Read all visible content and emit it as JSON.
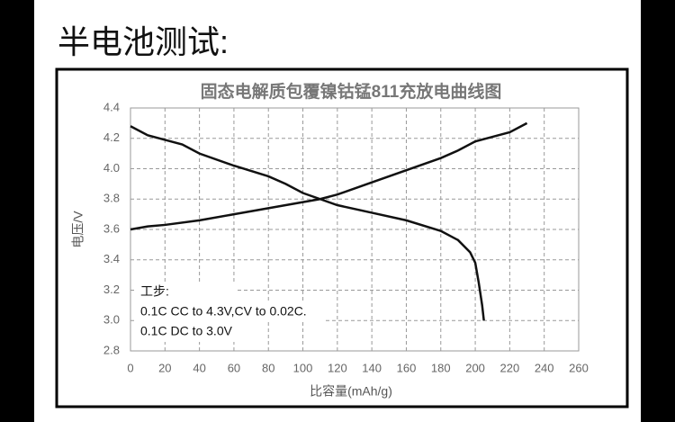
{
  "heading": "半电池测试:",
  "chart_data": {
    "type": "line",
    "title": "固态电解质包覆镍钴锰811充放电曲线图",
    "xlabel": "比容量(mAh/g)",
    "ylabel": "电压/V",
    "xlim": [
      0,
      260
    ],
    "xticks": [
      0,
      20,
      40,
      60,
      80,
      100,
      120,
      140,
      160,
      180,
      200,
      220,
      240,
      260
    ],
    "ylim": [
      2.8,
      4.4
    ],
    "yticks": [
      2.8,
      {
        "value": 3,
        "label": "3.0"
      },
      3.2,
      3.4,
      3.6,
      3.8,
      {
        "value": 4,
        "label": "4.0"
      },
      4.2,
      4.4
    ],
    "grid": true,
    "annotations": [
      "工步:",
      "0.1C CC to 4.3V,CV to 0.02C.",
      "0.1C DC to 3.0V"
    ],
    "series": [
      {
        "color": "#111111",
        "x": [
          0,
          10,
          20,
          40,
          60,
          80,
          100,
          110,
          120,
          140,
          160,
          180,
          190,
          200,
          210,
          220,
          230
        ],
        "values": [
          3.6,
          3.62,
          3.63,
          3.66,
          3.7,
          3.74,
          3.78,
          3.8,
          3.83,
          3.91,
          3.99,
          4.07,
          4.12,
          4.18,
          4.21,
          4.24,
          4.3
        ]
      },
      {
        "color": "#111111",
        "x": [
          0,
          10,
          20,
          30,
          40,
          60,
          80,
          90,
          100,
          110,
          120,
          140,
          160,
          180,
          190,
          197,
          200,
          202,
          204,
          205
        ],
        "values": [
          4.28,
          4.22,
          4.19,
          4.16,
          4.1,
          4.02,
          3.95,
          3.9,
          3.84,
          3.8,
          3.76,
          3.71,
          3.66,
          3.59,
          3.53,
          3.45,
          3.38,
          3.25,
          3.1,
          3.0
        ]
      }
    ]
  }
}
